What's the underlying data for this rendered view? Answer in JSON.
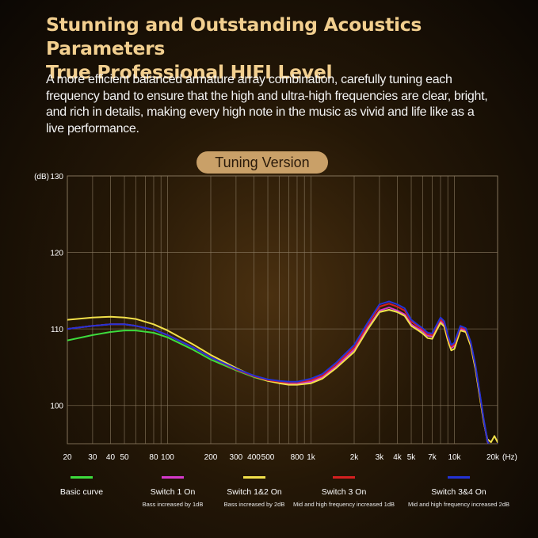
{
  "header": {
    "title_line1": "Stunning and Outstanding Acoustics Parameters",
    "title_line2": "True Professional HIFI Level",
    "description": "A more efficient balanced armature array combination, carefully tuning each frequency band to ensure that the high and ultra-high frequencies are clear, bright, and rich in details, making every high note in the music as vivid and life like as a live performance."
  },
  "badge": {
    "label": "Tuning Version"
  },
  "chart_data": {
    "type": "line",
    "x_scale": "log",
    "xlim": [
      20,
      20000
    ],
    "ylim": [
      95,
      130
    ],
    "ylabel": "(dB)",
    "xunit": "(Hz)",
    "y_ticks": [
      {
        "value": 130,
        "label": "130"
      },
      {
        "value": 120,
        "label": "120"
      },
      {
        "value": 110,
        "label": "110"
      },
      {
        "value": 100,
        "label": "100"
      }
    ],
    "x_ticks": [
      {
        "value": 20,
        "label": "20"
      },
      {
        "value": 30,
        "label": "30"
      },
      {
        "value": 40,
        "label": "40"
      },
      {
        "value": 50,
        "label": "50"
      },
      {
        "value": 80,
        "label": "80"
      },
      {
        "value": 100,
        "label": "100"
      },
      {
        "value": 200,
        "label": "200"
      },
      {
        "value": 300,
        "label": "300"
      },
      {
        "value": 400,
        "label": "400"
      },
      {
        "value": 500,
        "label": "500"
      },
      {
        "value": 800,
        "label": "800"
      },
      {
        "value": 1000,
        "label": "1k"
      },
      {
        "value": 2000,
        "label": "2k"
      },
      {
        "value": 3000,
        "label": "3k"
      },
      {
        "value": 4000,
        "label": "4k"
      },
      {
        "value": 5000,
        "label": "5k"
      },
      {
        "value": 7000,
        "label": "7k"
      },
      {
        "value": 10000,
        "label": "10k"
      },
      {
        "value": 20000,
        "label": "20k"
      }
    ],
    "grid_x": [
      20,
      30,
      40,
      50,
      60,
      70,
      80,
      90,
      100,
      200,
      300,
      400,
      500,
      600,
      700,
      800,
      900,
      1000,
      2000,
      3000,
      4000,
      5000,
      6000,
      7000,
      8000,
      9000,
      10000,
      20000
    ],
    "grid": true,
    "series": [
      {
        "name": "Basic curve",
        "sublabel": "",
        "color": "#3ddc3d",
        "points": [
          [
            20,
            108.5
          ],
          [
            30,
            109.2
          ],
          [
            40,
            109.6
          ],
          [
            50,
            109.8
          ],
          [
            60,
            109.8
          ],
          [
            80,
            109.5
          ],
          [
            100,
            108.9
          ],
          [
            150,
            107.3
          ],
          [
            200,
            106.0
          ],
          [
            300,
            104.6
          ],
          [
            400,
            103.7
          ],
          [
            500,
            103.2
          ],
          [
            600,
            103.0
          ],
          [
            700,
            102.8
          ],
          [
            800,
            102.8
          ],
          [
            1000,
            103.0
          ],
          [
            1200,
            103.6
          ],
          [
            1500,
            105.0
          ],
          [
            2000,
            107.2
          ],
          [
            2500,
            110.0
          ],
          [
            3000,
            112.2
          ],
          [
            3500,
            112.5
          ],
          [
            4000,
            112.2
          ],
          [
            4500,
            111.8
          ],
          [
            5000,
            110.5
          ],
          [
            5500,
            110.0
          ],
          [
            6000,
            109.6
          ],
          [
            6500,
            109.1
          ],
          [
            7000,
            109.0
          ],
          [
            7500,
            110.0
          ],
          [
            8000,
            111.0
          ],
          [
            8500,
            110.5
          ],
          [
            9000,
            108.8
          ],
          [
            9500,
            107.5
          ],
          [
            10000,
            107.8
          ],
          [
            11000,
            110.0
          ],
          [
            12000,
            109.8
          ],
          [
            13000,
            108.0
          ],
          [
            14000,
            105.0
          ],
          [
            15000,
            101.5
          ],
          [
            16000,
            98.0
          ],
          [
            17000,
            95.3
          ],
          [
            18000,
            94.3
          ],
          [
            19000,
            94.6
          ],
          [
            20000,
            95.0
          ]
        ]
      },
      {
        "name": "Switch 1 On",
        "sublabel": "Bass increased by 1dB",
        "color": "#d63acb",
        "points": [
          [
            20,
            110.0
          ],
          [
            30,
            110.4
          ],
          [
            40,
            110.6
          ],
          [
            50,
            110.6
          ],
          [
            60,
            110.4
          ],
          [
            80,
            109.9
          ],
          [
            100,
            109.2
          ],
          [
            150,
            107.6
          ],
          [
            200,
            106.3
          ],
          [
            300,
            104.7
          ],
          [
            400,
            103.8
          ],
          [
            500,
            103.3
          ],
          [
            600,
            103.1
          ],
          [
            700,
            102.9
          ],
          [
            800,
            102.9
          ],
          [
            1000,
            103.1
          ],
          [
            1200,
            103.7
          ],
          [
            1500,
            105.1
          ],
          [
            2000,
            107.3
          ],
          [
            2500,
            110.2
          ],
          [
            3000,
            112.4
          ],
          [
            3500,
            112.8
          ],
          [
            4000,
            112.4
          ],
          [
            4500,
            111.9
          ],
          [
            5000,
            110.6
          ],
          [
            5500,
            110.1
          ],
          [
            6000,
            109.7
          ],
          [
            6500,
            109.1
          ],
          [
            7000,
            109.0
          ],
          [
            7500,
            110.0
          ],
          [
            8000,
            111.0
          ],
          [
            8500,
            110.5
          ],
          [
            9000,
            108.8
          ],
          [
            9500,
            107.5
          ],
          [
            10000,
            107.8
          ],
          [
            11000,
            110.0
          ],
          [
            12000,
            109.8
          ],
          [
            13000,
            108.0
          ],
          [
            14000,
            105.0
          ],
          [
            15000,
            101.5
          ],
          [
            16000,
            98.0
          ],
          [
            17000,
            95.3
          ],
          [
            18000,
            94.3
          ],
          [
            19000,
            94.6
          ],
          [
            20000,
            95.0
          ]
        ]
      },
      {
        "name": "Switch 1&2 On",
        "sublabel": "Bass increased by 2dB",
        "color": "#f2e04a",
        "points": [
          [
            20,
            111.2
          ],
          [
            30,
            111.5
          ],
          [
            40,
            111.6
          ],
          [
            50,
            111.5
          ],
          [
            60,
            111.3
          ],
          [
            80,
            110.6
          ],
          [
            100,
            109.8
          ],
          [
            150,
            108.0
          ],
          [
            200,
            106.6
          ],
          [
            300,
            104.9
          ],
          [
            400,
            103.8
          ],
          [
            500,
            103.2
          ],
          [
            600,
            102.9
          ],
          [
            700,
            102.7
          ],
          [
            800,
            102.7
          ],
          [
            1000,
            102.9
          ],
          [
            1200,
            103.5
          ],
          [
            1500,
            104.9
          ],
          [
            2000,
            107.0
          ],
          [
            2500,
            110.0
          ],
          [
            3000,
            112.2
          ],
          [
            3500,
            112.5
          ],
          [
            4000,
            112.2
          ],
          [
            4500,
            111.7
          ],
          [
            5000,
            110.4
          ],
          [
            5500,
            109.9
          ],
          [
            6000,
            109.4
          ],
          [
            6500,
            108.8
          ],
          [
            7000,
            108.7
          ],
          [
            7500,
            109.8
          ],
          [
            8000,
            110.8
          ],
          [
            8500,
            110.3
          ],
          [
            9000,
            108.5
          ],
          [
            9500,
            107.2
          ],
          [
            10000,
            107.4
          ],
          [
            11000,
            109.8
          ],
          [
            12000,
            109.6
          ],
          [
            13000,
            107.8
          ],
          [
            14000,
            104.8
          ],
          [
            15000,
            101.2
          ],
          [
            16000,
            97.8
          ],
          [
            17000,
            95.6
          ],
          [
            18000,
            95.2
          ],
          [
            19000,
            96.0
          ],
          [
            20000,
            95.2
          ]
        ]
      },
      {
        "name": "Switch 3 On",
        "sublabel": "Mid and high frequency increased 1dB",
        "color": "#d42020",
        "points": [
          [
            20,
            110.0
          ],
          [
            30,
            110.4
          ],
          [
            40,
            110.6
          ],
          [
            50,
            110.6
          ],
          [
            60,
            110.4
          ],
          [
            80,
            109.9
          ],
          [
            100,
            109.2
          ],
          [
            150,
            107.6
          ],
          [
            200,
            106.3
          ],
          [
            300,
            104.7
          ],
          [
            400,
            103.8
          ],
          [
            500,
            103.3
          ],
          [
            600,
            103.1
          ],
          [
            700,
            103.0
          ],
          [
            800,
            103.0
          ],
          [
            1000,
            103.3
          ],
          [
            1200,
            103.9
          ],
          [
            1500,
            105.4
          ],
          [
            2000,
            107.6
          ],
          [
            2500,
            110.6
          ],
          [
            3000,
            112.9
          ],
          [
            3500,
            113.3
          ],
          [
            4000,
            112.9
          ],
          [
            4500,
            112.4
          ],
          [
            5000,
            111.0
          ],
          [
            5500,
            110.4
          ],
          [
            6000,
            109.9
          ],
          [
            6500,
            109.3
          ],
          [
            7000,
            109.2
          ],
          [
            7500,
            110.3
          ],
          [
            8000,
            111.3
          ],
          [
            8500,
            110.8
          ],
          [
            9000,
            109.0
          ],
          [
            9500,
            107.7
          ],
          [
            10000,
            108.0
          ],
          [
            11000,
            110.2
          ],
          [
            12000,
            110.0
          ],
          [
            13000,
            108.2
          ],
          [
            14000,
            105.2
          ],
          [
            15000,
            101.6
          ],
          [
            16000,
            98.1
          ],
          [
            17000,
            95.4
          ],
          [
            18000,
            94.3
          ],
          [
            19000,
            94.6
          ],
          [
            20000,
            95.0
          ]
        ]
      },
      {
        "name": "Switch 3&4 On",
        "sublabel": "Mid and high frequency increased 2dB",
        "color": "#2333d6",
        "points": [
          [
            20,
            110.0
          ],
          [
            30,
            110.4
          ],
          [
            40,
            110.6
          ],
          [
            50,
            110.6
          ],
          [
            60,
            110.4
          ],
          [
            80,
            109.9
          ],
          [
            100,
            109.2
          ],
          [
            150,
            107.6
          ],
          [
            200,
            106.3
          ],
          [
            300,
            104.8
          ],
          [
            400,
            103.9
          ],
          [
            500,
            103.4
          ],
          [
            600,
            103.2
          ],
          [
            700,
            103.1
          ],
          [
            800,
            103.1
          ],
          [
            1000,
            103.5
          ],
          [
            1200,
            104.1
          ],
          [
            1500,
            105.6
          ],
          [
            2000,
            107.9
          ],
          [
            2500,
            110.9
          ],
          [
            3000,
            113.2
          ],
          [
            3500,
            113.6
          ],
          [
            4000,
            113.2
          ],
          [
            4500,
            112.7
          ],
          [
            5000,
            111.2
          ],
          [
            5500,
            110.6
          ],
          [
            6000,
            110.1
          ],
          [
            6500,
            109.5
          ],
          [
            7000,
            109.4
          ],
          [
            7500,
            110.5
          ],
          [
            8000,
            111.5
          ],
          [
            8500,
            111.0
          ],
          [
            9000,
            109.2
          ],
          [
            9500,
            107.9
          ],
          [
            10000,
            108.2
          ],
          [
            11000,
            110.4
          ],
          [
            12000,
            110.1
          ],
          [
            13000,
            108.3
          ],
          [
            14000,
            105.3
          ],
          [
            15000,
            101.7
          ],
          [
            16000,
            98.2
          ],
          [
            17000,
            95.4
          ],
          [
            18000,
            94.3
          ],
          [
            19000,
            94.6
          ],
          [
            20000,
            95.0
          ]
        ]
      }
    ]
  }
}
